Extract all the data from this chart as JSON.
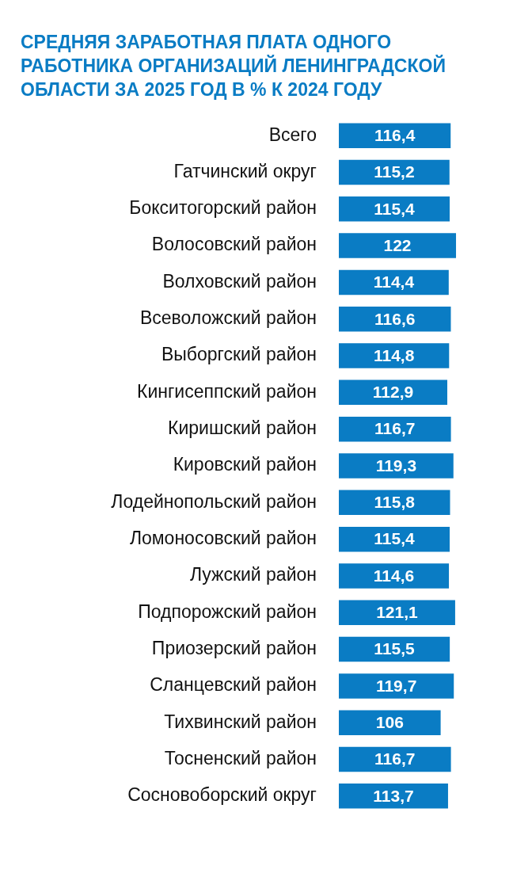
{
  "chart_data": {
    "type": "bar",
    "orientation": "horizontal",
    "title": "СРЕДНЯЯ ЗАРАБОТНАЯ ПЛАТА ОДНОГО РАБОТНИКА ОРГАНИЗАЦИЙ ЛЕНИНГРАДСКОЙ ОБЛАСТИ ЗА 2025 ГОД В % К 2024 ГОДУ",
    "categories": [
      "Всего",
      "Гатчинский округ",
      "Бокситогорский район",
      "Волосовский район",
      "Волховский район",
      "Всеволожский район",
      "Выборгский район",
      "Кингисеппский район",
      "Киришский район",
      "Кировский район",
      "Лодейнопольский район",
      "Ломоносовский район",
      "Лужский район",
      "Подпорожский район",
      "Приозерский район",
      "Сланцевский район",
      "Тихвинский район",
      "Тосненский район",
      "Сосновоборский округ"
    ],
    "values": [
      116.4,
      115.2,
      115.4,
      122,
      114.4,
      116.6,
      114.8,
      112.9,
      116.7,
      119.3,
      115.8,
      115.4,
      114.6,
      121.1,
      115.5,
      119.7,
      106,
      116.7,
      113.7
    ],
    "value_labels": [
      "116,4",
      "115,2",
      "115,4",
      "122",
      "114,4",
      "116,6",
      "114,8",
      "112,9",
      "116,7",
      "119,3",
      "115,8",
      "115,4",
      "114,6",
      "121,1",
      "115,5",
      "119,7",
      "106",
      "116,7",
      "113,7"
    ],
    "color": "#0a7cc4"
  }
}
